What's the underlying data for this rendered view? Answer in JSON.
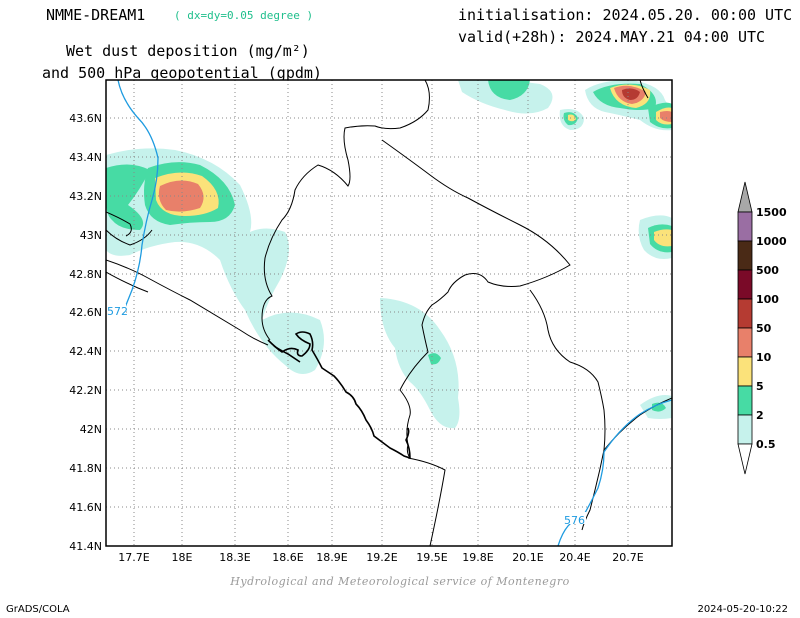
{
  "header": {
    "model": "NMME-DREAM1",
    "resolution": "( dx=dy=0.05 degree )",
    "init": "initialisation: 2024.05.20. 00:00 UTC",
    "valid": "valid(+28h): 2024.MAY.21 04:00 UTC",
    "var_line1": "Wet dust deposition (mg/m²)",
    "var_line2": "and 500 hPa geopotential (gpdm)"
  },
  "map": {
    "lat_labels": [
      "43.6N",
      "43.4N",
      "43.2N",
      "43N",
      "42.8N",
      "42.6N",
      "42.4N",
      "42.2N",
      "42N",
      "41.8N",
      "41.6N",
      "41.4N"
    ],
    "lon_labels": [
      "17.7E",
      "18E",
      "18.3E",
      "18.6E",
      "18.9E",
      "19.2E",
      "19.5E",
      "19.8E",
      "20.1E",
      "20.4E",
      "20.7E"
    ],
    "contours": [
      {
        "label": "572",
        "color": "#1e9be0"
      },
      {
        "label": "576",
        "color": "#1e9be0"
      }
    ],
    "region": "Montenegro and surroundings"
  },
  "legend": {
    "levels": [
      "1500",
      "1000",
      "500",
      "100",
      "50",
      "10",
      "5",
      "2",
      "0.5"
    ],
    "colors": {
      "over": "#a8a8a8",
      "l1500": "#9a6ea3",
      "l1000": "#4a2a16",
      "l500": "#7a0a28",
      "l100": "#b53b32",
      "l50": "#e8806a",
      "l10": "#fbe27a",
      "l5": "#47dba4",
      "l2": "#c6f2ec",
      "under": "#ffffff"
    }
  },
  "footer": {
    "credit": "Hydrological and Meteorological service of Montenegro",
    "left": "GrADS/COLA",
    "right": "2024-05-20-10:22"
  }
}
